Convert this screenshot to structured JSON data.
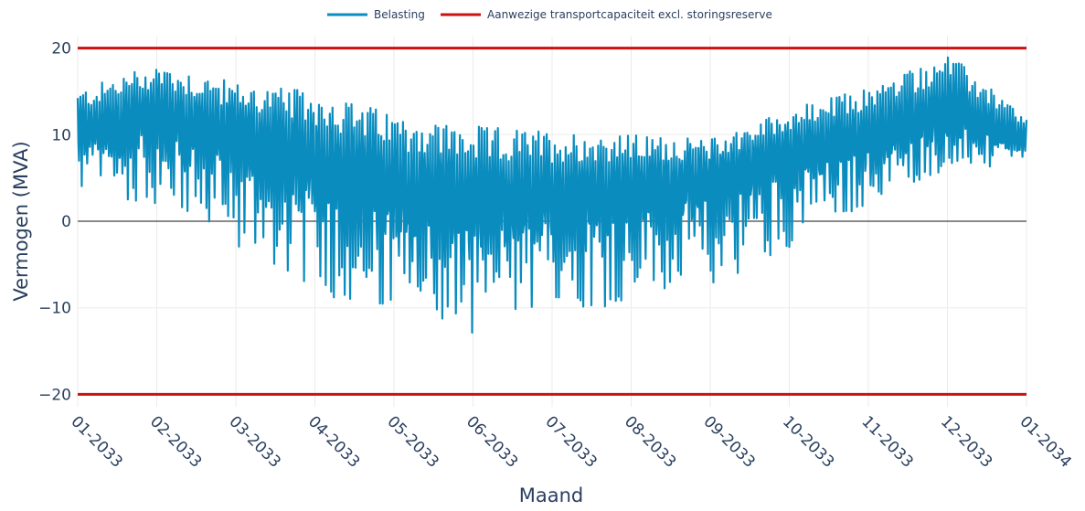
{
  "chart_data": {
    "type": "line",
    "title": "",
    "xlabel": "Maand",
    "ylabel": "Vermogen (MVA)",
    "ylim": [
      -22,
      22
    ],
    "yticks": [
      {
        "value": 20,
        "label": "20"
      },
      {
        "value": 10,
        "label": "10"
      },
      {
        "value": 0,
        "label": "0"
      },
      {
        "value": -10,
        "label": "−10"
      },
      {
        "value": -20,
        "label": "−20"
      }
    ],
    "xticks": [
      "01-2033",
      "02-2033",
      "03-2033",
      "04-2033",
      "05-2033",
      "06-2033",
      "07-2033",
      "08-2033",
      "09-2033",
      "10-2033",
      "11-2033",
      "12-2033",
      "01-2034"
    ],
    "grid": true,
    "legend_position": "top-center",
    "series": [
      {
        "name": "Belasting",
        "color": "#0a8cbf",
        "x": [
          "01-2033",
          "02-2033",
          "03-2033",
          "04-2033",
          "05-2033",
          "06-2033",
          "07-2033",
          "08-2033",
          "09-2033",
          "10-2033",
          "11-2033",
          "12-2033",
          "01-2034"
        ],
        "upper": [
          15,
          18.5,
          16,
          15,
          12.5,
          11,
          10.5,
          10,
          9.5,
          13,
          15.5,
          19.5,
          12
        ],
        "lower": [
          3,
          2,
          -3,
          -8,
          -12,
          -13,
          -10,
          -10,
          -8,
          -3,
          2,
          6,
          6
        ],
        "baseline": [
          10,
          11,
          9,
          6,
          3,
          1,
          2,
          3,
          4,
          7,
          9,
          12,
          9
        ]
      },
      {
        "name": "Aanwezige transportcapaciteit excl. storingsreserve",
        "color": "#cc1111",
        "values": [
          20,
          -20
        ]
      }
    ]
  }
}
